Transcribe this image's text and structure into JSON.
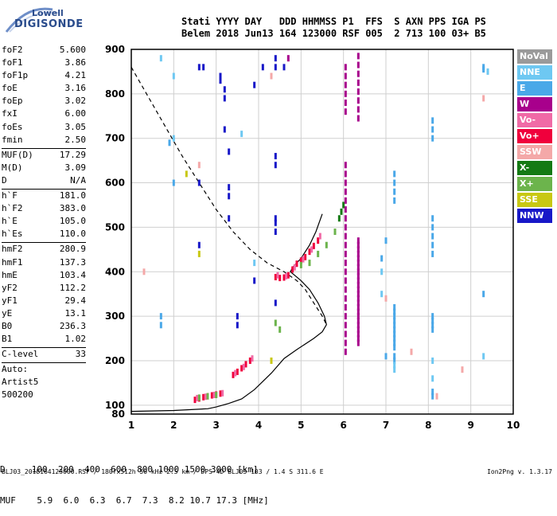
{
  "logo": {
    "line1": "Lowell",
    "line2": "DIGISONDE"
  },
  "header": {
    "row1": "Stati YYYY DAY   DDD HHMMSS P1  FFS  S AXN PPS IGA PS",
    "row2": "Belem 2018 Jun13 164 123000 RSF 005  2 713 100 03+ B5"
  },
  "params": {
    "group1": [
      {
        "label": "foF2",
        "value": "5.600"
      },
      {
        "label": "foF1",
        "value": "3.86"
      },
      {
        "label": "foF1p",
        "value": "4.21"
      },
      {
        "label": "foE",
        "value": "3.16"
      },
      {
        "label": "foEp",
        "value": "3.02"
      },
      {
        "label": "fxI",
        "value": "6.00"
      },
      {
        "label": "foEs",
        "value": "3.05"
      },
      {
        "label": "fmin",
        "value": "2.50"
      }
    ],
    "group2": [
      {
        "label": "MUF(D)",
        "value": "17.29"
      },
      {
        "label": "M(D)",
        "value": "3.09"
      },
      {
        "label": "D",
        "value": "N/A"
      }
    ],
    "group3": [
      {
        "label": "h`F",
        "value": "181.0"
      },
      {
        "label": "h`F2",
        "value": "383.0"
      },
      {
        "label": "h`E",
        "value": "105.0"
      },
      {
        "label": "h`Es",
        "value": "110.0"
      }
    ],
    "group4": [
      {
        "label": "hmF2",
        "value": "280.9"
      },
      {
        "label": "hmF1",
        "value": "137.3"
      },
      {
        "label": "hmE",
        "value": "103.4"
      },
      {
        "label": "yF2",
        "value": "112.2"
      },
      {
        "label": "yF1",
        "value": "29.4"
      },
      {
        "label": "yE",
        "value": "13.1"
      },
      {
        "label": "B0",
        "value": "236.3"
      },
      {
        "label": "B1",
        "value": "1.02"
      }
    ],
    "group5": [
      {
        "label": "C-level",
        "value": "33"
      }
    ],
    "group6": [
      {
        "label": "Auto:",
        "value": ""
      },
      {
        "label": "Artist5",
        "value": ""
      },
      {
        "label": "500200",
        "value": ""
      }
    ]
  },
  "bottom": {
    "row1": "D     100  200  400  600  800 1000 1500 3000 [km]",
    "row2": "MUF    5.9  6.0  6.3  6.7  7.3  8.2 10.7 17.3 [MHz]"
  },
  "footer": "BLJ03_2018164123000.RSF / 180fx512h 50 kHz 2.5 km / DPS-4D BLJ03 103 / 1.4 S 311.6 E",
  "version": "Ion2Png v. 1.3.17",
  "legend": [
    {
      "label": "NoVal",
      "color": "#9a9a9a"
    },
    {
      "label": "NNE",
      "color": "#6ec8f2"
    },
    {
      "label": "E",
      "color": "#4aa8e8"
    },
    {
      "label": "W",
      "color": "#a8008c"
    },
    {
      "label": "Vo-",
      "color": "#f06aa6"
    },
    {
      "label": "Vo+",
      "color": "#f0003c"
    },
    {
      "label": "SSW",
      "color": "#f4a8a8"
    },
    {
      "label": "X-",
      "color": "#147a14"
    },
    {
      "label": "X+",
      "color": "#6cb44c"
    },
    {
      "label": "SSE",
      "color": "#c8c814"
    },
    {
      "label": "NNW",
      "color": "#1818c8"
    }
  ],
  "chart_data": {
    "type": "scatter",
    "title": "",
    "xlabel": "",
    "ylabel": "",
    "xlim": [
      1,
      10
    ],
    "ylim": [
      80,
      900
    ],
    "xticks": [
      "1",
      "2",
      "3",
      "4",
      "5",
      "6",
      "7",
      "8",
      "9",
      "10"
    ],
    "yticks": [
      "80",
      "100",
      "200",
      "300",
      "400",
      "500",
      "600",
      "700",
      "800",
      "900"
    ],
    "xtick_values": [
      1,
      2,
      3,
      4,
      5,
      6,
      7,
      8,
      9,
      10
    ],
    "ytick_values": [
      80,
      100,
      200,
      300,
      400,
      500,
      600,
      700,
      800,
      900
    ],
    "grid": true,
    "series": [
      {
        "name": "profile_solid",
        "x": [
          1.0,
          2.0,
          2.8,
          3.0,
          3.3,
          3.6,
          3.9,
          4.3,
          4.6,
          4.9,
          5.3,
          5.5,
          5.6,
          5.55,
          5.4,
          5.2,
          5.0,
          4.85,
          4.75,
          4.8,
          5.0,
          5.2,
          5.35,
          5.5
        ],
        "y": [
          86,
          88,
          92,
          96,
          104,
          114,
          135,
          172,
          205,
          225,
          250,
          265,
          281,
          300,
          330,
          360,
          380,
          392,
          400,
          410,
          430,
          460,
          490,
          530
        ]
      },
      {
        "name": "profile_dashed",
        "x": [
          1.0,
          1.3,
          1.6,
          1.9,
          2.2,
          2.6,
          3.0,
          3.4,
          3.8,
          4.2,
          4.6,
          4.9,
          5.1,
          5.3,
          5.5,
          5.6
        ],
        "y": [
          860,
          810,
          760,
          710,
          660,
          600,
          540,
          490,
          450,
          420,
          400,
          380,
          360,
          330,
          300,
          281
        ]
      },
      {
        "name": "Vo+",
        "x": [
          2.5,
          2.6,
          2.7,
          2.8,
          2.9,
          3.0,
          3.1,
          3.4,
          3.5,
          3.6,
          3.7,
          3.8,
          4.4,
          4.5,
          4.6,
          4.7,
          4.8,
          4.9,
          5.0,
          5.1,
          5.2,
          5.3,
          5.4
        ],
        "y": [
          112,
          115,
          118,
          120,
          122,
          124,
          126,
          168,
          175,
          183,
          192,
          200,
          388,
          386,
          387,
          392,
          405,
          418,
          425,
          433,
          445,
          458,
          470
        ]
      },
      {
        "name": "Vo-",
        "x": [
          2.55,
          2.75,
          2.95,
          3.15,
          3.45,
          3.65,
          3.85,
          4.45,
          4.65,
          4.85,
          5.05,
          5.25,
          5.45
        ],
        "y": [
          116,
          119,
          123,
          127,
          172,
          186,
          205,
          392,
          390,
          410,
          428,
          450,
          480
        ]
      },
      {
        "name": "X+",
        "x": [
          2.6,
          2.8,
          3.0,
          4.4,
          4.5,
          5.0,
          5.2,
          5.4,
          5.6,
          5.8
        ],
        "y": [
          117,
          120,
          123,
          285,
          270,
          415,
          420,
          440,
          460,
          490
        ]
      },
      {
        "name": "X-",
        "x": [
          5.9,
          5.95,
          6.0
        ],
        "y": [
          520,
          535,
          550
        ]
      },
      {
        "name": "W",
        "x": [
          6.05,
          6.05,
          6.05,
          6.05,
          6.05,
          6.05,
          6.05,
          6.05,
          6.05,
          6.05,
          6.05,
          6.05,
          6.05,
          6.05,
          6.05,
          6.05,
          6.05,
          6.05,
          6.05,
          6.05,
          6.05,
          6.05,
          6.05,
          6.05,
          6.05,
          6.05,
          6.05,
          6.05,
          6.35,
          6.35,
          6.35,
          6.35,
          6.35,
          6.35,
          6.35,
          6.35,
          6.35,
          6.35,
          6.35,
          6.35,
          6.35,
          6.35,
          6.35,
          6.35,
          6.35,
          6.35,
          6.35,
          6.35,
          6.35,
          6.35,
          6.35,
          6.35,
          6.35,
          6.35,
          6.35,
          6.35,
          6.35,
          6.35,
          6.35,
          6.35,
          4.7,
          3.1
        ],
        "y": [
          860,
          840,
          820,
          800,
          780,
          760,
          640,
          620,
          600,
          580,
          560,
          540,
          520,
          500,
          480,
          460,
          440,
          420,
          400,
          380,
          360,
          340,
          320,
          300,
          280,
          260,
          240,
          220,
          885,
          865,
          845,
          825,
          805,
          785,
          765,
          745,
          470,
          460,
          450,
          440,
          430,
          420,
          410,
          400,
          390,
          380,
          370,
          360,
          350,
          340,
          330,
          320,
          310,
          300,
          290,
          280,
          270,
          260,
          250,
          240,
          880,
          830
        ]
      },
      {
        "name": "E",
        "x": [
          1.7,
          1.7,
          1.9,
          2.0,
          7.2,
          7.2,
          7.2,
          7.2,
          7.2,
          7.2,
          7.2,
          7.2,
          7.2,
          7.2,
          7.2,
          7.2,
          7.2,
          7.2,
          7.2,
          7.2,
          8.1,
          8.1,
          8.1,
          8.1,
          8.1,
          8.1,
          8.1,
          8.1,
          8.1,
          8.1,
          8.1,
          8.1,
          8.1,
          8.1,
          9.3,
          9.3,
          9.3,
          7.0,
          6.9,
          7.0
        ],
        "y": [
          280,
          300,
          690,
          600,
          620,
          600,
          580,
          560,
          320,
          310,
          300,
          290,
          280,
          270,
          260,
          250,
          240,
          230,
          210,
          200,
          740,
          720,
          700,
          520,
          500,
          480,
          460,
          440,
          300,
          290,
          280,
          270,
          130,
          120,
          860,
          855,
          350,
          470,
          430,
          210
        ]
      },
      {
        "name": "NNE",
        "x": [
          1.7,
          2.0,
          2.0,
          3.6,
          3.9,
          6.9,
          6.9,
          7.2,
          7.2,
          8.1,
          8.1,
          9.3,
          9.4
        ],
        "y": [
          880,
          840,
          700,
          710,
          420,
          400,
          350,
          190,
          180,
          200,
          160,
          210,
          850
        ]
      },
      {
        "name": "NNW",
        "x": [
          2.6,
          3.1,
          3.1,
          3.2,
          3.2,
          3.3,
          3.3,
          3.5,
          3.5,
          3.9,
          3.9,
          4.1,
          4.4,
          4.4,
          4.4,
          4.4,
          4.4,
          4.4,
          4.4,
          4.4,
          4.6,
          3.3,
          3.3,
          3.2,
          2.7,
          2.6,
          2.6
        ],
        "y": [
          860,
          840,
          830,
          810,
          720,
          670,
          520,
          300,
          280,
          820,
          380,
          860,
          880,
          860,
          660,
          640,
          520,
          510,
          490,
          330,
          860,
          590,
          570,
          790,
          860,
          600,
          460
        ]
      },
      {
        "name": "SSW",
        "x": [
          1.3,
          2.6,
          4.3,
          7.0,
          7.6,
          8.2,
          8.8,
          9.3
        ],
        "y": [
          400,
          640,
          840,
          340,
          220,
          120,
          180,
          790
        ]
      },
      {
        "name": "SSE",
        "x": [
          2.3,
          2.6,
          4.3
        ],
        "y": [
          620,
          440,
          200
        ]
      }
    ]
  }
}
